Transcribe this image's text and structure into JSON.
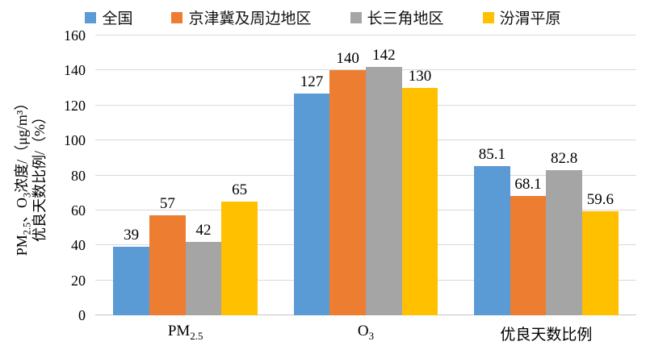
{
  "chart_data": {
    "type": "bar",
    "categories": [
      "PM_{2.5}",
      "O_{3}",
      "优良天数比例"
    ],
    "series": [
      {
        "name": "全国",
        "color": "#5B9BD5",
        "values": [
          39,
          127,
          85.1
        ]
      },
      {
        "name": "京津冀及周边地区",
        "color": "#ED7D31",
        "values": [
          57,
          140,
          68.1
        ]
      },
      {
        "name": "长三角地区",
        "color": "#A5A5A5",
        "values": [
          42,
          142,
          82.8
        ]
      },
      {
        "name": "汾渭平原",
        "color": "#FFC000",
        "values": [
          65,
          130,
          59.6
        ]
      }
    ],
    "ylabel_lines": [
      "PM_{2.5}、O_{3}浓度/（μg/m³）",
      "优良天数比例/（%）"
    ],
    "ylim": [
      0,
      160
    ],
    "ytick_step": 20,
    "ytick_labels": [
      "0",
      "20",
      "40",
      "60",
      "80",
      "100",
      "120",
      "140",
      "160"
    ],
    "grid": true,
    "data_labels": true,
    "legend_position": "top",
    "colors": {
      "gridline": "#D9D9D9",
      "axis_line": "#C6C6C6",
      "text": "#000000",
      "background": "#FFFFFF"
    }
  }
}
